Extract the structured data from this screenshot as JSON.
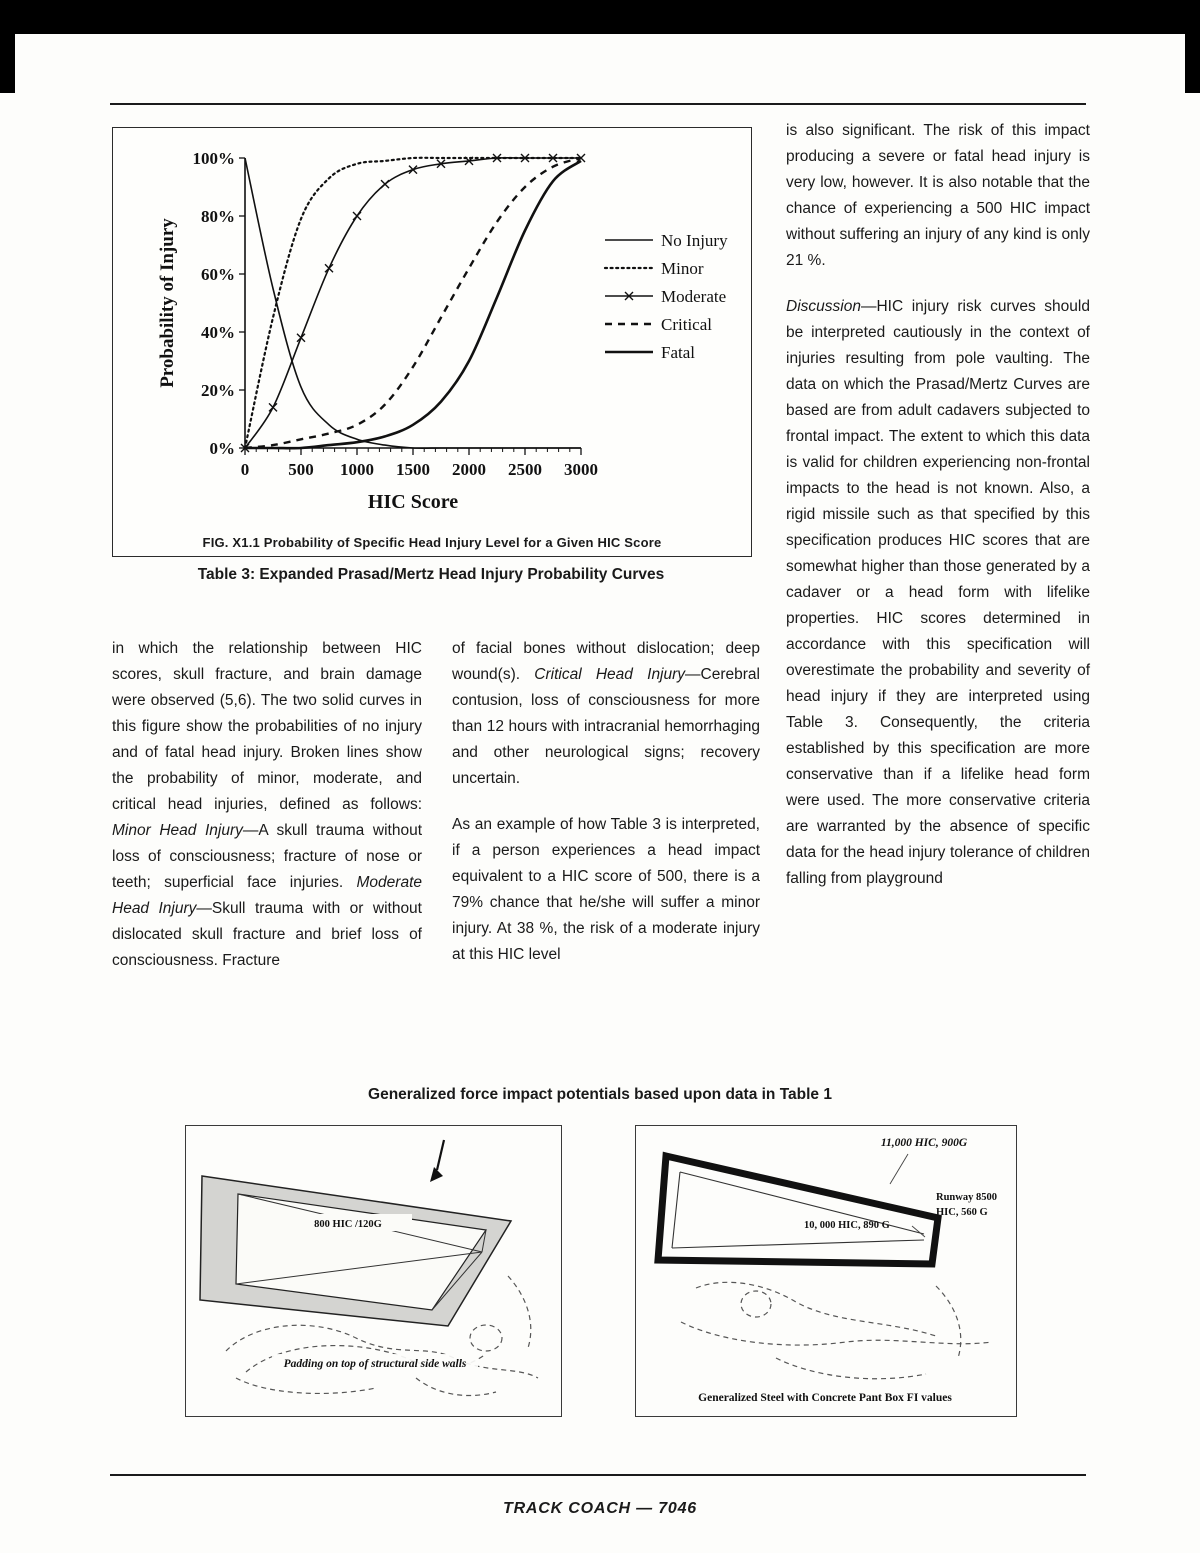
{
  "figure_top": {
    "fig_caption": "FIG. X1.1 Probability of Specific Head Injury Level for a Given HIC Score",
    "table_caption": "Table 3: Expanded Prasad/Mertz Head Injury Probability Curves"
  },
  "chart_data": {
    "type": "line",
    "title": "FIG. X1.1 Probability of Specific Head Injury Level for a Given HIC Score",
    "xlabel": "HIC Score",
    "ylabel": "Probability of Injury",
    "xlim": [
      0,
      3000
    ],
    "ylim": [
      0,
      100
    ],
    "x_ticks": [
      0,
      500,
      1000,
      1500,
      2000,
      2500,
      3000
    ],
    "y_tick_labels": [
      "0%",
      "20%",
      "40%",
      "60%",
      "80%",
      "100%"
    ],
    "grid": false,
    "legend_position": "right",
    "x": [
      0,
      250,
      500,
      750,
      1000,
      1250,
      1500,
      1750,
      2000,
      2250,
      2500,
      2750,
      3000
    ],
    "series": [
      {
        "name": "No Injury",
        "style": "solid",
        "width": 1.6,
        "values": [
          100,
          55,
          21,
          8,
          3,
          1,
          0,
          0,
          0,
          0,
          0,
          0,
          0
        ]
      },
      {
        "name": "Minor",
        "style": "dotted",
        "width": 2.2,
        "values": [
          0,
          45,
          79,
          93,
          98,
          99,
          100,
          100,
          100,
          100,
          100,
          100,
          100
        ]
      },
      {
        "name": "Moderate",
        "style": "solid-x",
        "width": 1.6,
        "values": [
          0,
          14,
          38,
          62,
          80,
          91,
          96,
          98,
          99,
          100,
          100,
          100,
          100
        ]
      },
      {
        "name": "Critical",
        "style": "dashed",
        "width": 2.4,
        "values": [
          0,
          1,
          3,
          5,
          8,
          15,
          28,
          45,
          62,
          78,
          90,
          97,
          100
        ]
      },
      {
        "name": "Fatal",
        "style": "solid",
        "width": 2.6,
        "values": [
          0,
          0,
          0,
          1,
          2,
          4,
          8,
          16,
          30,
          52,
          75,
          92,
          99
        ]
      }
    ]
  },
  "article": {
    "col1": [
      [
        {
          "t": "in which the relationship between HIC scores, skull fracture, and brain damage were observed (5,6). The two solid curves in this figure show the probabilities of no injury and of fatal head injury. Broken lines show the probability of minor, moderate, and critical head injuries, defined as follows: "
        },
        {
          "t": "Minor Head Injury",
          "i": true
        },
        {
          "t": "—A skull trauma without loss of consciousness; fracture of nose or teeth; superficial face injuries. "
        },
        {
          "t": "Moderate Head Injury",
          "i": true
        },
        {
          "t": "—Skull trauma with or without dislocated skull fracture and brief loss of consciousness. Fracture"
        }
      ]
    ],
    "col2": [
      [
        {
          "t": "of facial bones without dislocation; deep wound(s). "
        },
        {
          "t": "Critical Head Injury",
          "i": true
        },
        {
          "t": "—Cerebral contusion, loss of consciousness for more than 12 hours with intracranial hemorrhaging and other neurological signs; recovery uncertain."
        }
      ],
      [
        {
          "t": "As an example of how Table 3 is interpreted, if a person experiences a head impact equivalent to a HIC score of 500, there is a 79% chance that he/she will suffer a minor injury. At 38 %, the risk of a moderate injury at this HIC level"
        }
      ]
    ],
    "col3": [
      [
        {
          "t": "is also significant. The risk of this impact producing a severe or fatal head injury is very low, however. It is also notable that the chance of experiencing a 500 HIC impact without suffering an injury of any kind is only 21 %."
        }
      ],
      [
        {
          "t": "Discussion",
          "i": true
        },
        {
          "t": "—HIC injury risk curves should be interpreted cautiously in the context of injuries resulting from pole vaulting. The data on which the Prasad/Mertz Curves are based are from adult cadavers subjected to frontal impact. The extent to which this data is valid for children experiencing non-frontal impacts to the head is not known. Also, a rigid missile such as that specified by this specification produces HIC scores that are somewhat higher than those generated by a cadaver or a head form with lifelike properties. HIC scores determined in accordance with this specification will overestimate the probability and severity of head injury if they are interpreted using Table 3. Consequently, the criteria established by this specification are more conservative than if a lifelike head form were used. The more conservative criteria are warranted by the absence of specific data for the head injury tolerance of children falling from playground"
        }
      ]
    ]
  },
  "diagrams": {
    "heading": "Generalized force impact potentials based upon data in Table 1",
    "left": {
      "label_hic": "800 HIC /120G",
      "caption": "Padding on top of structural side walls"
    },
    "right": {
      "label_top": "11,000 HIC, 900G",
      "label_runway_1": "Runway 8500",
      "label_runway_2": "HIC, 560 G",
      "label_mid": "10, 000 HIC, 890 G",
      "caption": "Generalized Steel with Concrete Pant Box FI values"
    }
  },
  "footer": {
    "text": "TRACK COACH — 7046"
  }
}
